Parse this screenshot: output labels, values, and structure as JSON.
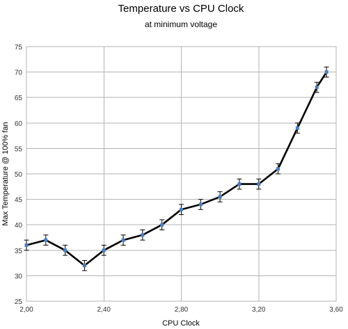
{
  "chart_data": {
    "type": "line",
    "title": "Temperature vs CPU Clock",
    "subtitle": "at minimum voltage",
    "xlabel": "CPU Clock",
    "ylabel": "Max Temperature @ 100% fan",
    "xlim": [
      2.0,
      3.6
    ],
    "ylim": [
      25,
      75
    ],
    "x_ticks": [
      2.0,
      2.4,
      2.8,
      3.2,
      3.6
    ],
    "x_tick_labels": [
      "2,00",
      "2,40",
      "2,80",
      "3,20",
      "3,60"
    ],
    "y_ticks": [
      25,
      30,
      35,
      40,
      45,
      50,
      55,
      60,
      65,
      70,
      75
    ],
    "y_tick_labels": [
      "25",
      "30",
      "35",
      "40",
      "45",
      "50",
      "55",
      "60",
      "65",
      "70",
      "75"
    ],
    "grid": true,
    "error_bar": 1,
    "colors": {
      "line": "#000000",
      "marker": "#4a7ebb",
      "grid": "#b3b3b3"
    },
    "series": [
      {
        "x": [
          2.0,
          2.1,
          2.2,
          2.3,
          2.4,
          2.5,
          2.6,
          2.7,
          2.8,
          2.9,
          3.0,
          3.1,
          3.2,
          3.3,
          3.4,
          3.5,
          3.55
        ],
        "values": [
          36,
          37,
          35,
          32,
          35,
          37,
          38,
          40,
          43,
          44,
          45.5,
          48,
          48,
          51,
          59,
          67,
          70
        ]
      }
    ]
  }
}
